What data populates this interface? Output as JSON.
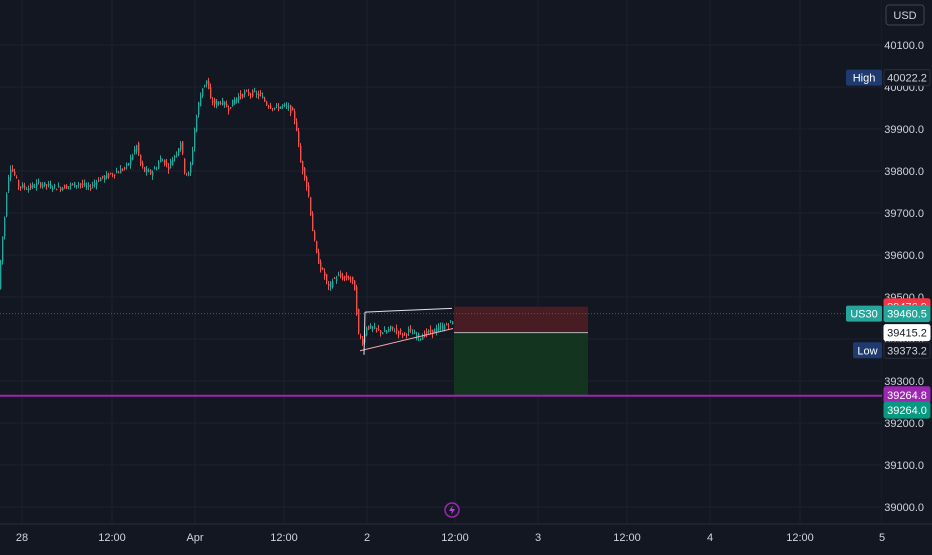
{
  "header": {
    "currency": "USD"
  },
  "colors": {
    "background": "#131722",
    "up": "#26a69a",
    "down": "#ef5350",
    "grid": "#1e222d",
    "axis_text": "#d1d4dc",
    "level_line": "#9c27b0",
    "stop_zone": "#4a1c24",
    "target_zone": "#13361f"
  },
  "chart_data": {
    "type": "candlestick",
    "symbol": "US30",
    "y_ticks": [
      "40100.0",
      "40000.0",
      "39900.0",
      "39800.0",
      "39700.0",
      "39600.0",
      "39500.0",
      "39400.0",
      "39300.0",
      "39200.0",
      "39100.0",
      "39000.0"
    ],
    "x_ticks": [
      "28",
      "12:00",
      "Apr",
      "12:00",
      "2",
      "12:00",
      "3",
      "12:00",
      "4",
      "12:00",
      "5"
    ],
    "ylim": [
      38950,
      40170
    ],
    "price_labels": [
      {
        "name": "stop",
        "value": "39476.9",
        "price": 39476.9,
        "color": "#f23645",
        "text_color": "#ffffff"
      },
      {
        "name": "last",
        "value": "39460.5",
        "price": 39460.5,
        "color": "#26a69a",
        "text_color": "#ffffff",
        "tag": "US30"
      },
      {
        "name": "entry",
        "value": "39415.2",
        "price": 39415.2,
        "color": "#ffffff",
        "text_color": "#131722"
      },
      {
        "name": "low",
        "value": "39373.2",
        "price": 39373.2,
        "color": "#131722",
        "text_color": "#d1d4dc",
        "tag": "Low"
      },
      {
        "name": "level",
        "value": "39264.8",
        "price": 39264.8,
        "color": "#9c27b0",
        "text_color": "#ffffff"
      },
      {
        "name": "target",
        "value": "39264.0",
        "price": 39264.0,
        "color": "#089981",
        "text_color": "#ffffff"
      },
      {
        "name": "high",
        "value": "40022.2",
        "price": 40022.2,
        "color": "#131722",
        "text_color": "#d1d4dc",
        "tag": "High"
      }
    ],
    "horizontal_line": 39264.8,
    "path_segments": [
      [
        0,
        39520
      ],
      [
        3,
        39620
      ],
      [
        6,
        39690
      ],
      [
        9,
        39780
      ],
      [
        12,
        39810
      ],
      [
        16,
        39790
      ],
      [
        20,
        39765
      ],
      [
        30,
        39760
      ],
      [
        40,
        39770
      ],
      [
        50,
        39765
      ],
      [
        60,
        39760
      ],
      [
        70,
        39765
      ],
      [
        80,
        39770
      ],
      [
        90,
        39760
      ],
      [
        100,
        39780
      ],
      [
        110,
        39790
      ],
      [
        120,
        39800
      ],
      [
        128,
        39810
      ],
      [
        132,
        39830
      ],
      [
        138,
        39860
      ],
      [
        142,
        39815
      ],
      [
        146,
        39800
      ],
      [
        152,
        39795
      ],
      [
        158,
        39810
      ],
      [
        162,
        39830
      ],
      [
        166,
        39820
      ],
      [
        170,
        39810
      ],
      [
        174,
        39830
      ],
      [
        178,
        39845
      ],
      [
        182,
        39870
      ],
      [
        186,
        39800
      ],
      [
        190,
        39790
      ],
      [
        193,
        39830
      ],
      [
        196,
        39900
      ],
      [
        200,
        39960
      ],
      [
        204,
        40000
      ],
      [
        208,
        40015
      ],
      [
        212,
        39970
      ],
      [
        216,
        39960
      ],
      [
        222,
        39965
      ],
      [
        230,
        39950
      ],
      [
        238,
        39975
      ],
      [
        246,
        39985
      ],
      [
        254,
        39985
      ],
      [
        262,
        39980
      ],
      [
        268,
        39960
      ],
      [
        276,
        39950
      ],
      [
        284,
        39955
      ],
      [
        290,
        39950
      ],
      [
        295,
        39935
      ],
      [
        298,
        39900
      ],
      [
        302,
        39820
      ],
      [
        306,
        39790
      ],
      [
        310,
        39740
      ],
      [
        314,
        39660
      ],
      [
        318,
        39600
      ],
      [
        322,
        39570
      ],
      [
        326,
        39550
      ],
      [
        330,
        39520
      ],
      [
        334,
        39540
      ],
      [
        340,
        39550
      ],
      [
        346,
        39545
      ],
      [
        352,
        39545
      ],
      [
        356,
        39520
      ],
      [
        360,
        39410
      ],
      [
        364,
        39395
      ],
      [
        368,
        39430
      ],
      [
        374,
        39425
      ],
      [
        380,
        39420
      ],
      [
        386,
        39415
      ],
      [
        392,
        39425
      ],
      [
        398,
        39420
      ],
      [
        404,
        39410
      ],
      [
        410,
        39420
      ],
      [
        416,
        39410
      ],
      [
        422,
        39405
      ],
      [
        428,
        39415
      ],
      [
        434,
        39418
      ],
      [
        440,
        39425
      ],
      [
        446,
        39430
      ],
      [
        452,
        39440
      ]
    ],
    "triangle": {
      "upper": [
        [
          365,
          39464
        ],
        [
          452,
          39473
        ]
      ],
      "lower": [
        [
          360,
          39372
        ],
        [
          453,
          39425
        ]
      ]
    },
    "position": {
      "x_start": 454,
      "x_end": 588,
      "stop": 39476.9,
      "entry": 39415.2,
      "target": 39264.0
    }
  }
}
